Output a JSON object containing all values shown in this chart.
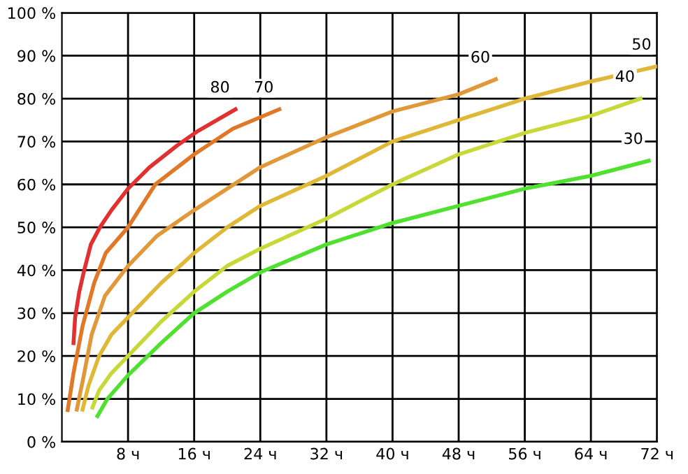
{
  "chart_data": {
    "type": "line",
    "xlim": [
      0,
      72
    ],
    "ylim": [
      0,
      100
    ],
    "xticks": [
      {
        "value": 8,
        "label": "8 ч"
      },
      {
        "value": 16,
        "label": "16 ч"
      },
      {
        "value": 24,
        "label": "24 ч"
      },
      {
        "value": 32,
        "label": "32 ч"
      },
      {
        "value": 40,
        "label": "40 ч"
      },
      {
        "value": 48,
        "label": "48 ч"
      },
      {
        "value": 56,
        "label": "56 ч"
      },
      {
        "value": 64,
        "label": "64 ч"
      },
      {
        "value": 72,
        "label": "72 ч"
      }
    ],
    "yticks": [
      {
        "value": 0,
        "label": "0 %"
      },
      {
        "value": 10,
        "label": "10 %"
      },
      {
        "value": 20,
        "label": "20 %"
      },
      {
        "value": 30,
        "label": "30 %"
      },
      {
        "value": 40,
        "label": "40 %"
      },
      {
        "value": 50,
        "label": "50 %"
      },
      {
        "value": 60,
        "label": "60 %"
      },
      {
        "value": 70,
        "label": "70 %"
      },
      {
        "value": 80,
        "label": "80 %"
      },
      {
        "value": 90,
        "label": "90 %"
      },
      {
        "value": 100,
        "label": "100 %"
      }
    ],
    "grid": true,
    "legend": false,
    "marker": "none",
    "line_style": "solid",
    "series": [
      {
        "name": "80",
        "color": "#e03030",
        "x": [
          1.4,
          1.6,
          2.1,
          2.7,
          3.5,
          4.6,
          6,
          8,
          10.6,
          13.9,
          16.5,
          21
        ],
        "values": [
          23,
          29,
          35,
          40,
          46,
          50,
          54,
          59,
          64,
          69,
          72.5,
          77.5
        ]
      },
      {
        "name": "70",
        "color": "#e07828",
        "x": [
          0.7,
          1.4,
          2.5,
          3.9,
          5.3,
          8,
          11.3,
          16,
          20.7,
          26.3
        ],
        "values": [
          7.4,
          16,
          27,
          37,
          44,
          50,
          60,
          67,
          73,
          77.5
        ]
      },
      {
        "name": "60",
        "color": "#e09838",
        "x": [
          1.8,
          2.6,
          3.6,
          5.2,
          8,
          11.5,
          16,
          20,
          24,
          32,
          40,
          48,
          52.5
        ],
        "values": [
          7.5,
          15,
          25,
          34,
          41,
          48,
          54,
          59,
          64,
          71,
          77,
          81,
          84.5
        ]
      },
      {
        "name": "50",
        "color": "#e0b838",
        "x": [
          2.5,
          3.2,
          4.5,
          6,
          8,
          12,
          16,
          20,
          24,
          32,
          40,
          48,
          56,
          64,
          72
        ],
        "values": [
          7.5,
          13,
          20,
          25,
          29,
          37,
          44,
          50,
          55,
          62,
          70,
          75,
          80,
          84,
          87.5
        ]
      },
      {
        "name": "40",
        "color": "#c8d838",
        "x": [
          3.7,
          4.5,
          6,
          8,
          12,
          16,
          20,
          24,
          32,
          40,
          48,
          56,
          64,
          70
        ],
        "values": [
          8,
          12,
          16,
          20,
          28,
          35,
          41,
          45,
          52,
          60,
          67,
          72,
          76,
          80
        ]
      },
      {
        "name": "30",
        "color": "#50e030",
        "x": [
          4.3,
          5.5,
          8,
          12,
          16,
          20,
          24,
          32,
          40,
          48,
          56,
          64,
          71
        ],
        "values": [
          6,
          10,
          15.5,
          23,
          30,
          35,
          39.5,
          46,
          51,
          55,
          59,
          62,
          65.5
        ]
      }
    ]
  }
}
